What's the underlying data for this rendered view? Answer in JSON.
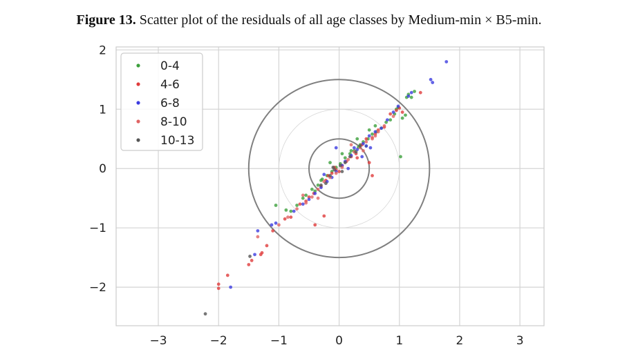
{
  "figure": {
    "label": "Figure 13.",
    "text": "Scatter plot of the residuals of all age classes by Medium-min × B5-min."
  },
  "chart_data": {
    "type": "scatter",
    "xlim": [
      -3.7,
      3.4
    ],
    "ylim": [
      -2.65,
      2.05
    ],
    "xticks": [
      -3,
      -2,
      -1,
      0,
      1,
      2,
      3
    ],
    "yticks": [
      -2,
      -1,
      0,
      1,
      2
    ],
    "xtick_labels": [
      "−3",
      "−2",
      "−1",
      "0",
      "1",
      "2",
      "3"
    ],
    "ytick_labels": [
      "−2",
      "−1",
      "0",
      "1",
      "2"
    ],
    "grid": true,
    "legend_position": "top-left",
    "circles": [
      {
        "r": 0.5,
        "color": "#7f7f7f",
        "style": "bold"
      },
      {
        "r": 1.0,
        "color": "#d6d6d6",
        "style": "thin"
      },
      {
        "r": 1.5,
        "color": "#7f7f7f",
        "style": "bold"
      }
    ],
    "series": [
      {
        "name": "0-4",
        "color": "#3ca03c",
        "points": [
          [
            -1.05,
            -0.62
          ],
          [
            -0.88,
            -0.7
          ],
          [
            -0.8,
            -0.72
          ],
          [
            -0.7,
            -0.62
          ],
          [
            -0.55,
            -0.45
          ],
          [
            -0.45,
            -0.35
          ],
          [
            -0.35,
            -0.28
          ],
          [
            -0.28,
            -0.18
          ],
          [
            -0.2,
            -0.12
          ],
          [
            -0.12,
            -0.05
          ],
          [
            -0.05,
            0.02
          ],
          [
            0.02,
            0.08
          ],
          [
            0.1,
            0.18
          ],
          [
            0.18,
            0.25
          ],
          [
            0.25,
            0.3
          ],
          [
            0.32,
            0.36
          ],
          [
            0.4,
            0.45
          ],
          [
            0.48,
            0.5
          ],
          [
            0.55,
            0.58
          ],
          [
            0.62,
            0.62
          ],
          [
            0.7,
            0.68
          ],
          [
            0.78,
            0.78
          ],
          [
            0.85,
            0.82
          ],
          [
            0.92,
            0.92
          ],
          [
            0.95,
            1.0
          ],
          [
            0.98,
            1.03
          ],
          [
            1.05,
            0.85
          ],
          [
            1.1,
            0.9
          ],
          [
            1.12,
            1.2
          ],
          [
            1.15,
            1.25
          ],
          [
            1.2,
            1.2
          ],
          [
            1.25,
            1.3
          ],
          [
            1.02,
            0.2
          ],
          [
            -0.6,
            -0.5
          ],
          [
            -0.3,
            -0.2
          ],
          [
            0.2,
            0.3
          ],
          [
            0.35,
            0.4
          ],
          [
            0.45,
            0.38
          ],
          [
            0.6,
            0.72
          ],
          [
            -0.15,
            0.1
          ],
          [
            0.05,
            0.25
          ],
          [
            -0.4,
            -0.38
          ],
          [
            0.3,
            0.5
          ],
          [
            0.5,
            0.65
          ]
        ]
      },
      {
        "name": "4-6",
        "color": "#e03c3c",
        "points": [
          [
            -2.0,
            -1.95
          ],
          [
            -2.0,
            -2.02
          ],
          [
            -1.85,
            -1.8
          ],
          [
            -1.5,
            -1.62
          ],
          [
            -1.45,
            -1.55
          ],
          [
            -1.3,
            -1.45
          ],
          [
            -1.28,
            -1.42
          ],
          [
            -1.2,
            -1.3
          ],
          [
            -1.1,
            -1.05
          ],
          [
            -0.9,
            -0.85
          ],
          [
            -0.8,
            -0.82
          ],
          [
            -0.65,
            -0.6
          ],
          [
            -0.4,
            -0.95
          ],
          [
            -0.25,
            -0.8
          ],
          [
            -0.55,
            -0.55
          ],
          [
            -0.42,
            -0.42
          ],
          [
            -0.3,
            -0.3
          ],
          [
            -0.22,
            -0.2
          ],
          [
            -0.12,
            -0.08
          ],
          [
            -0.05,
            -0.02
          ],
          [
            0.05,
            0.05
          ],
          [
            0.12,
            0.12
          ],
          [
            0.2,
            0.2
          ],
          [
            0.28,
            0.25
          ],
          [
            0.38,
            0.4
          ],
          [
            0.45,
            0.5
          ],
          [
            0.55,
            0.52
          ],
          [
            0.6,
            0.58
          ],
          [
            0.65,
            0.65
          ],
          [
            0.75,
            0.7
          ],
          [
            0.85,
            0.92
          ],
          [
            0.95,
            0.98
          ],
          [
            1.0,
            1.02
          ],
          [
            1.05,
            0.95
          ],
          [
            1.35,
            1.28
          ],
          [
            0.55,
            -0.12
          ],
          [
            0.5,
            0.1
          ],
          [
            0.3,
            0.18
          ],
          [
            -0.08,
            0.02
          ],
          [
            0.0,
            -0.05
          ],
          [
            -0.18,
            -0.12
          ],
          [
            -0.5,
            -0.48
          ]
        ]
      },
      {
        "name": "6-8",
        "color": "#3c3ce0",
        "points": [
          [
            1.78,
            1.8
          ],
          [
            1.52,
            1.5
          ],
          [
            1.55,
            1.45
          ],
          [
            1.2,
            1.28
          ],
          [
            1.15,
            1.22
          ],
          [
            0.98,
            1.05
          ],
          [
            0.9,
            0.95
          ],
          [
            0.8,
            0.82
          ],
          [
            0.7,
            0.68
          ],
          [
            0.6,
            0.62
          ],
          [
            0.5,
            0.55
          ],
          [
            0.45,
            0.38
          ],
          [
            0.4,
            0.42
          ],
          [
            0.3,
            0.32
          ],
          [
            0.2,
            0.22
          ],
          [
            0.1,
            0.12
          ],
          [
            0.05,
            0.05
          ],
          [
            -0.05,
            -0.05
          ],
          [
            -0.12,
            -0.15
          ],
          [
            -0.2,
            -0.22
          ],
          [
            -0.3,
            -0.32
          ],
          [
            -0.4,
            -0.42
          ],
          [
            -0.5,
            -0.52
          ],
          [
            -0.6,
            -0.6
          ],
          [
            -0.75,
            -0.72
          ],
          [
            -1.05,
            -0.92
          ],
          [
            -1.12,
            -0.95
          ],
          [
            -1.35,
            -1.05
          ],
          [
            -1.4,
            -1.45
          ],
          [
            -1.8,
            -2.0
          ],
          [
            -0.05,
            0.35
          ],
          [
            0.38,
            0.2
          ],
          [
            0.15,
            0.0
          ],
          [
            -0.25,
            -0.1
          ],
          [
            0.25,
            0.35
          ],
          [
            0.52,
            0.35
          ]
        ]
      },
      {
        "name": "8-10",
        "color": "#e06464",
        "points": [
          [
            -1.35,
            -1.15
          ],
          [
            -1.0,
            -0.95
          ],
          [
            -0.85,
            -0.82
          ],
          [
            -0.7,
            -0.68
          ],
          [
            -0.55,
            -0.58
          ],
          [
            -0.45,
            -0.48
          ],
          [
            -0.35,
            -0.35
          ],
          [
            -0.25,
            -0.22
          ],
          [
            -0.15,
            -0.15
          ],
          [
            -0.05,
            -0.08
          ],
          [
            0.05,
            0.02
          ],
          [
            0.15,
            0.15
          ],
          [
            0.25,
            0.28
          ],
          [
            0.35,
            0.35
          ],
          [
            0.45,
            0.45
          ],
          [
            0.55,
            0.5
          ],
          [
            0.65,
            0.62
          ],
          [
            0.75,
            0.72
          ],
          [
            0.9,
            0.88
          ],
          [
            -0.6,
            -0.45
          ],
          [
            -0.35,
            -0.5
          ],
          [
            0.2,
            0.4
          ],
          [
            0.4,
            0.3
          ],
          [
            0.6,
            0.55
          ]
        ]
      },
      {
        "name": "10-13",
        "color": "#555555",
        "points": [
          [
            -2.22,
            -2.45
          ],
          [
            -1.48,
            -1.48
          ],
          [
            -0.15,
            -0.12
          ],
          [
            -0.08,
            -0.02
          ],
          [
            0.02,
            0.05
          ],
          [
            0.1,
            0.1
          ],
          [
            0.18,
            0.2
          ],
          [
            -0.22,
            -0.25
          ],
          [
            -0.3,
            -0.28
          ],
          [
            0.28,
            0.28
          ],
          [
            0.35,
            0.38
          ],
          [
            0.05,
            -0.05
          ],
          [
            -0.1,
            0.02
          ]
        ]
      }
    ]
  }
}
